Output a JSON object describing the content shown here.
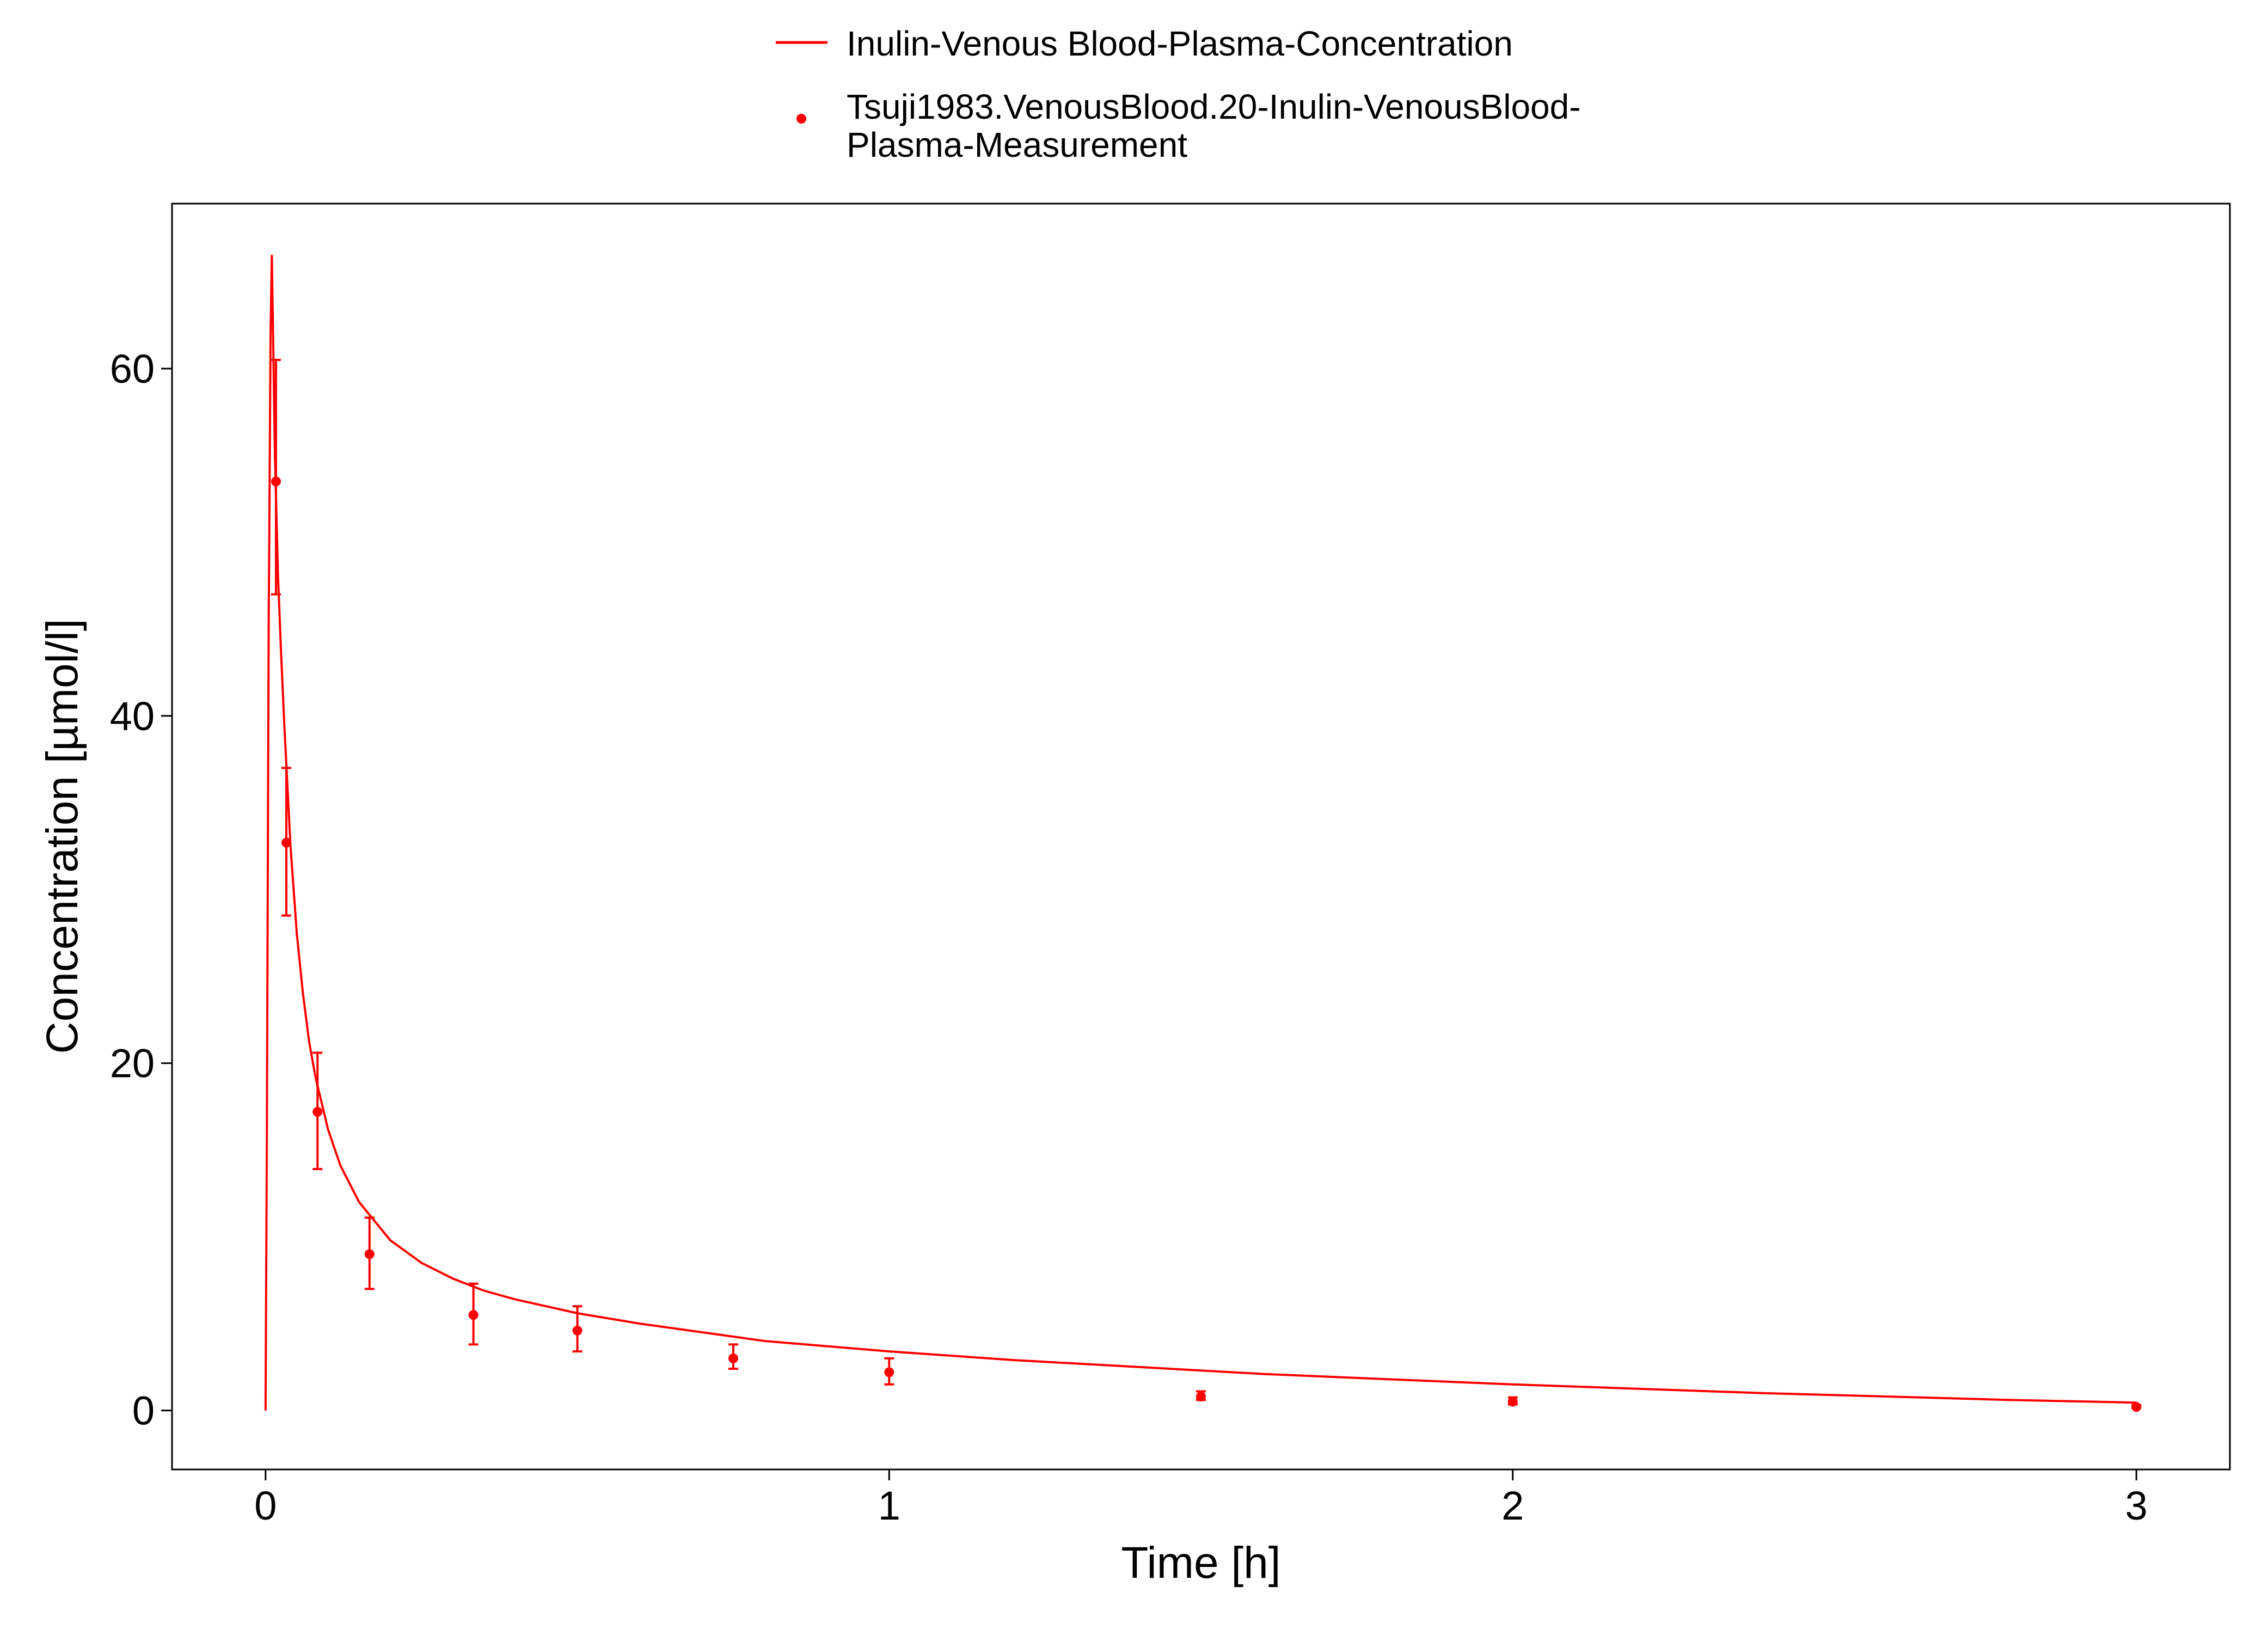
{
  "chart_data": {
    "type": "line",
    "title": "",
    "xlabel": "Time [h]",
    "ylabel": "Concentration [µmol/l]",
    "xlim": [
      -0.15,
      3.15
    ],
    "ylim": [
      -3.4,
      69.5
    ],
    "x_ticks": [
      0,
      1,
      2,
      3
    ],
    "x_tick_labels": [
      "0",
      "1",
      "2",
      "3"
    ],
    "y_ticks": [
      0,
      20,
      40,
      60
    ],
    "y_tick_labels": [
      "0",
      "20",
      "40",
      "60"
    ],
    "grid": false,
    "legend_position": "top",
    "colors": {
      "series": "#ff0000",
      "axes": "#000000",
      "background": "#ffffff"
    },
    "legend": {
      "line_label": "Inulin-Venous Blood-Plasma-Concentration",
      "points_label_line1": "Tsuji1983.VenousBlood.20-Inulin-VenousBlood-",
      "points_label_line2": "Plasma-Measurement"
    },
    "series": [
      {
        "name": "Inulin-Venous Blood-Plasma-Concentration",
        "kind": "line",
        "x": [
          0,
          0.002,
          0.005,
          0.008,
          0.01,
          0.0125,
          0.015,
          0.02,
          0.025,
          0.03,
          0.04,
          0.05,
          0.06,
          0.07,
          0.08,
          0.1,
          0.12,
          0.15,
          0.2,
          0.25,
          0.3,
          0.35,
          0.4,
          0.5,
          0.6,
          0.7,
          0.8,
          1.0,
          1.2,
          1.4,
          1.6,
          1.8,
          2.0,
          2.2,
          2.4,
          2.6,
          2.8,
          3.0
        ],
        "y": [
          0,
          15,
          45,
          62,
          66.5,
          61,
          55,
          48,
          43.5,
          39.5,
          32.5,
          27.5,
          24,
          21.2,
          19.2,
          16.2,
          14.1,
          12.0,
          9.8,
          8.5,
          7.6,
          6.9,
          6.4,
          5.6,
          5.0,
          4.5,
          4.0,
          3.4,
          2.9,
          2.5,
          2.1,
          1.8,
          1.5,
          1.25,
          1.0,
          0.8,
          0.6,
          0.45
        ]
      },
      {
        "name": "Tsuji1983.VenousBlood.20-Inulin-VenousBlood-Plasma-Measurement",
        "kind": "scatter",
        "x": [
          0.0167,
          0.0333,
          0.0833,
          0.1667,
          0.3333,
          0.5,
          0.75,
          1.0,
          1.5,
          2.0,
          3.0
        ],
        "y": [
          53.5,
          32.7,
          17.2,
          9.0,
          5.5,
          4.6,
          3.0,
          2.2,
          0.8,
          0.5,
          0.2
        ],
        "err_low": [
          47.0,
          28.5,
          13.9,
          7.0,
          3.8,
          3.4,
          2.4,
          1.5,
          0.6,
          0.35,
          0.15
        ],
        "err_high": [
          60.5,
          37.0,
          20.6,
          11.1,
          7.3,
          6.0,
          3.8,
          3.0,
          1.1,
          0.75,
          0.3
        ]
      }
    ]
  }
}
